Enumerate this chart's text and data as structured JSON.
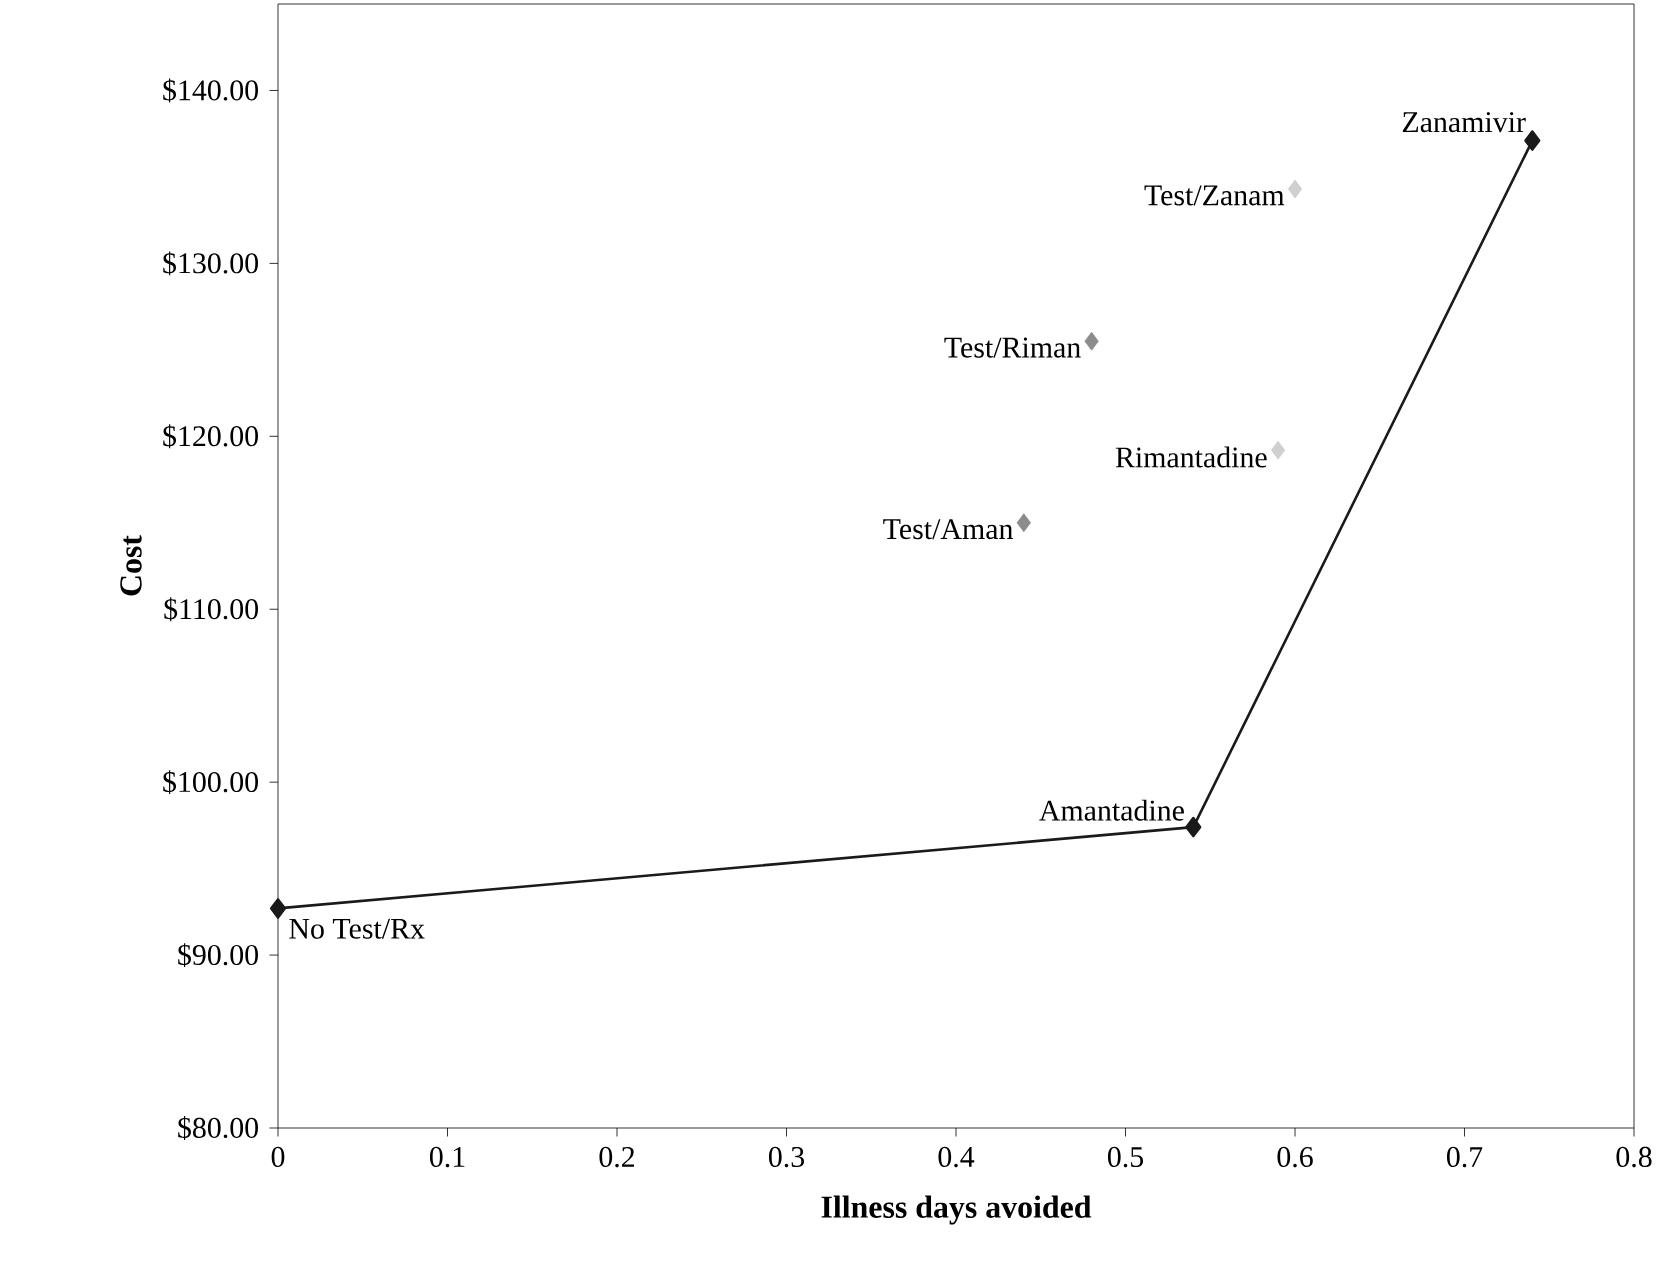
{
  "chart_data": {
    "type": "line",
    "xlabel": "Illness days avoided",
    "ylabel": "Cost",
    "xlim": [
      0,
      0.8
    ],
    "xticks": [
      0,
      0.1,
      0.2,
      0.3,
      0.4,
      0.5,
      0.6,
      0.7,
      0.8
    ],
    "ylim": [
      80,
      145
    ],
    "yticks": [
      {
        "value": 80,
        "label": "$80.00"
      },
      {
        "value": 90,
        "label": "$90.00"
      },
      {
        "value": 100,
        "label": "$100.00"
      },
      {
        "value": 110,
        "label": "$110.00"
      },
      {
        "value": 120,
        "label": "$120.00"
      },
      {
        "value": 130,
        "label": "$130.00"
      },
      {
        "value": 140,
        "label": "$140.00"
      }
    ],
    "marker": "diamond",
    "grid": false,
    "series": [
      {
        "color": "#1a1a1a",
        "x": [
          0,
          0.54,
          0.74
        ],
        "values": [
          92.7,
          97.4,
          137.1
        ]
      },
      {
        "type": "scatter",
        "color": "#8c8c8c",
        "x": [
          0.44,
          0.48
        ],
        "values": [
          115.0,
          125.5
        ]
      },
      {
        "type": "scatter",
        "color": "#cfcfcf",
        "x": [
          0.59,
          0.6
        ],
        "values": [
          119.2,
          134.3
        ]
      }
    ],
    "annotations": [
      {
        "text": "Zanamivir",
        "x": 0.74,
        "y": 137.1
      },
      {
        "text": "Test/Zanam",
        "x": 0.6,
        "y": 134.3
      },
      {
        "text": "Test/Riman",
        "x": 0.48,
        "y": 125.5
      },
      {
        "text": "Rimantadine",
        "x": 0.59,
        "y": 119.2
      },
      {
        "text": "Test/Aman",
        "x": 0.44,
        "y": 115.0
      },
      {
        "text": "Amantadine",
        "x": 0.54,
        "y": 97.4
      },
      {
        "text": "No Test/Rx",
        "x": 0,
        "y": 92.7
      }
    ]
  }
}
